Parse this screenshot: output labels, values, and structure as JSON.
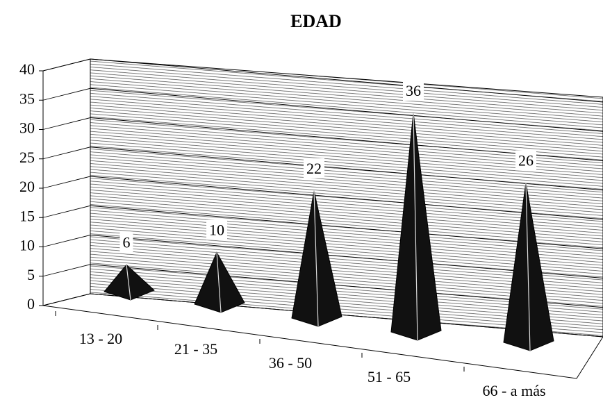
{
  "chart_data": {
    "type": "pyramid3d",
    "title": "EDAD",
    "categories": [
      "13 - 20",
      "21 - 35",
      "36 - 50",
      "51 - 65",
      "66 - a más"
    ],
    "values": [
      6,
      10,
      22,
      36,
      26
    ],
    "color": "#111111",
    "ylim": [
      0,
      40
    ],
    "yticks": [
      0,
      5,
      10,
      15,
      20,
      25,
      30,
      35,
      40
    ],
    "grid": true
  }
}
